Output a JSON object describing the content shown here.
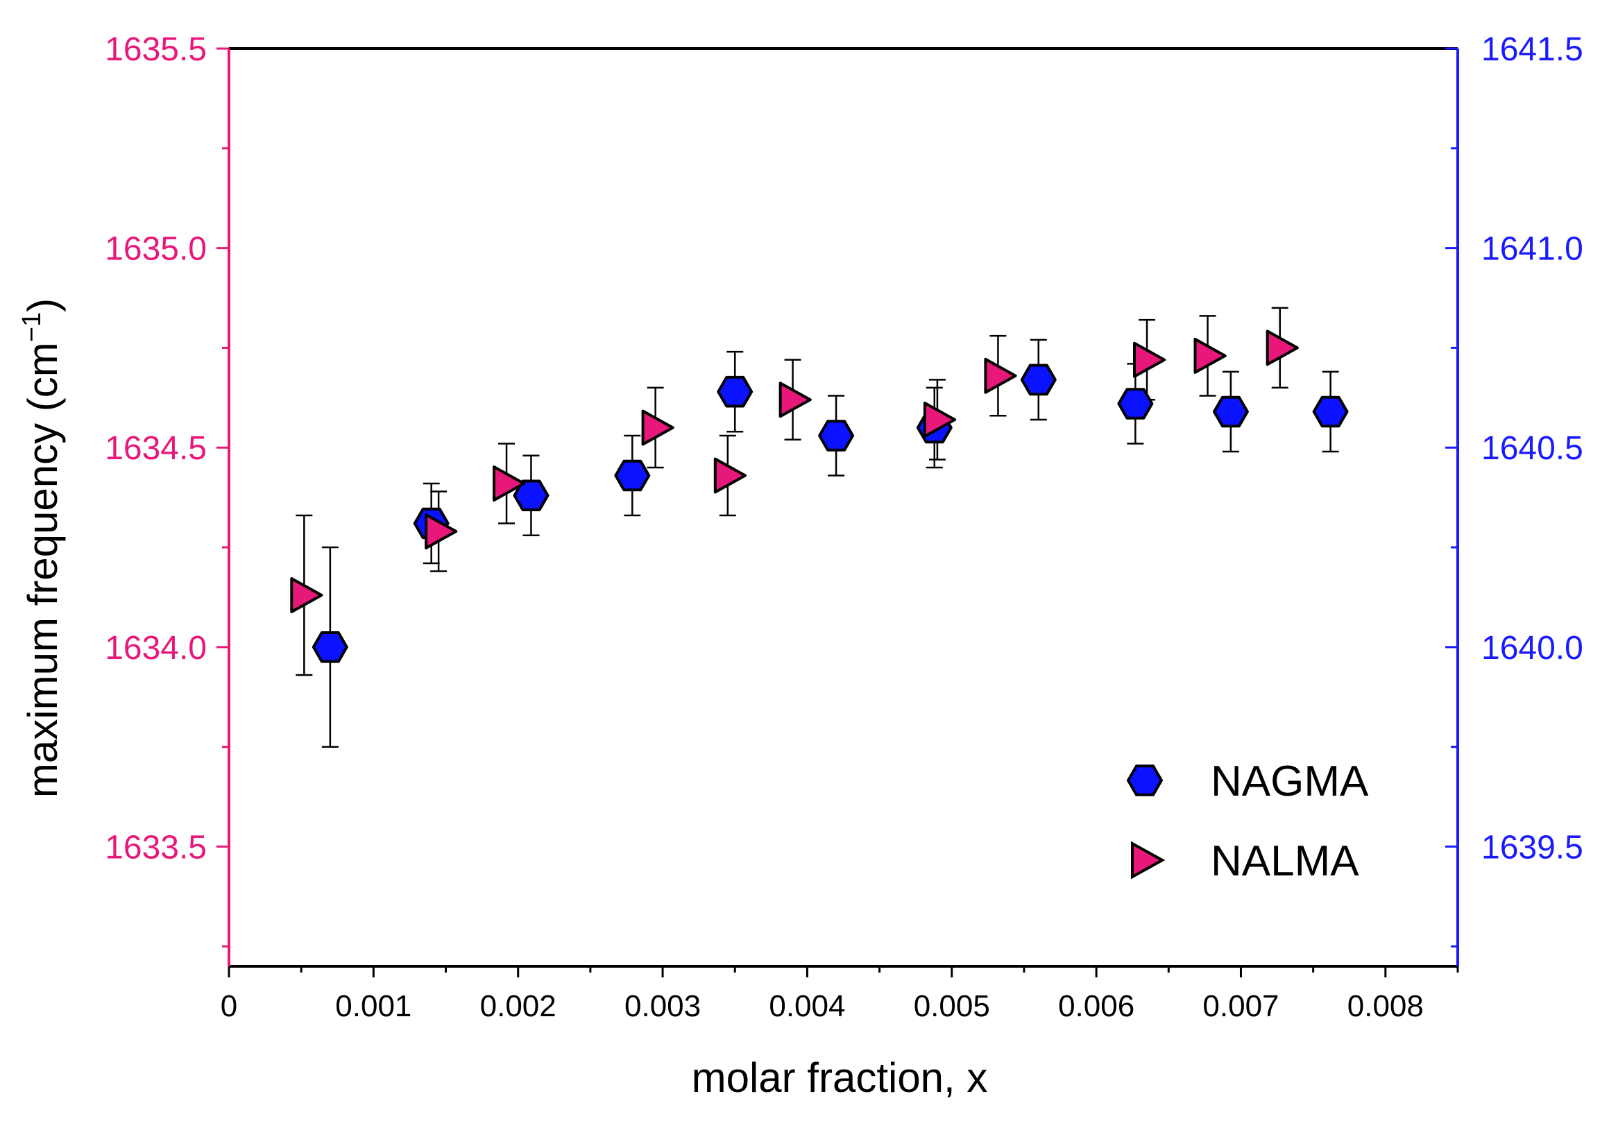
{
  "chart_data": {
    "type": "scatter",
    "xlabel": "molar fraction, x",
    "ylabel": "maximum frequency (cm",
    "ylabel_superscript": "−1",
    "ylabel_close": ")",
    "xlim": [
      0,
      0.0085
    ],
    "ylim_left": [
      1633.2,
      1635.5
    ],
    "ylim_right": [
      1639.2,
      1641.5
    ],
    "x_ticks": [
      "0",
      "0.001",
      "0.002",
      "0.003",
      "0.004",
      "0.005",
      "0.006",
      "0.007",
      "0.008"
    ],
    "y_left_ticks": [
      "1633.5",
      "1634.0",
      "1634.5",
      "1635.0",
      "1635.5"
    ],
    "y_right_ticks": [
      "1639.5",
      "1640.0",
      "1640.5",
      "1641.0",
      "1641.5"
    ],
    "legend": {
      "position": "bottom-right"
    },
    "series": [
      {
        "name": "NAGMA",
        "axis": "right",
        "marker": "hexagon",
        "color": "#0a12ff",
        "x": [
          0.0007,
          0.0014,
          0.00209,
          0.00279,
          0.0035,
          0.0042,
          0.00488,
          0.0056,
          0.00627,
          0.00693,
          0.00762
        ],
        "y": [
          1640.0,
          1640.31,
          1640.38,
          1640.43,
          1640.64,
          1640.53,
          1640.55,
          1640.67,
          1640.61,
          1640.59,
          1640.59
        ],
        "err": [
          0.25,
          0.1,
          0.1,
          0.1,
          0.1,
          0.1,
          0.1,
          0.1,
          0.1,
          0.1,
          0.1
        ]
      },
      {
        "name": "NALMA",
        "axis": "left",
        "marker": "triangle-right",
        "color": "#e8177a",
        "x": [
          0.00052,
          0.00145,
          0.00192,
          0.00295,
          0.00345,
          0.0039,
          0.0049,
          0.00532,
          0.00635,
          0.00677,
          0.00727
        ],
        "y": [
          1634.13,
          1634.29,
          1634.41,
          1634.55,
          1634.43,
          1634.62,
          1634.57,
          1634.68,
          1634.72,
          1634.73,
          1634.75
        ],
        "err": [
          0.2,
          0.1,
          0.1,
          0.1,
          0.1,
          0.1,
          0.1,
          0.1,
          0.1,
          0.1,
          0.1
        ]
      }
    ],
    "colors": {
      "left_axis": "#e8177a",
      "right_axis": "#1a1aff",
      "frame": "#000000"
    }
  }
}
